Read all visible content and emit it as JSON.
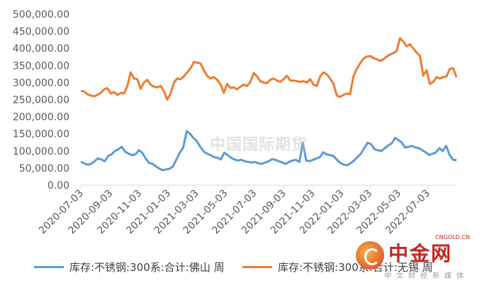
{
  "chart_data": {
    "type": "line",
    "title": "",
    "xlabel": "",
    "ylabel": "",
    "ylim": [
      0,
      500000
    ],
    "yticks": [
      "0.00",
      "50,000.00",
      "100,000.00",
      "150,000.00",
      "200,000.00",
      "250,000.00",
      "300,000.00",
      "350,000.00",
      "400,000.00",
      "450,000.00",
      "500,000.00"
    ],
    "xticks": [
      "2020-07-03",
      "2020-09-03",
      "2020-11-03",
      "2021-01-03",
      "2021-03-03",
      "2021-05-03",
      "2021-07-03",
      "2021-09-03",
      "2021-11-03",
      "2022-01-03",
      "2022-03-03",
      "2022-05-03",
      "2022-07-03"
    ],
    "x_start": "2020-07-03",
    "x_step_days": 7,
    "legend_position": "bottom",
    "grid": false,
    "series": [
      {
        "name": "库存:不锈钢:300系:合计:佛山 周",
        "color": "#5b9bd5",
        "values": [
          68000,
          64000,
          60000,
          62000,
          70000,
          78000,
          75000,
          70000,
          85000,
          90000,
          100000,
          105000,
          112000,
          98000,
          92000,
          88000,
          90000,
          102000,
          95000,
          78000,
          65000,
          62000,
          55000,
          48000,
          44000,
          46000,
          48000,
          55000,
          75000,
          95000,
          110000,
          158000,
          150000,
          138000,
          128000,
          112000,
          98000,
          92000,
          88000,
          82000,
          80000,
          75000,
          95000,
          88000,
          80000,
          75000,
          72000,
          74000,
          70000,
          68000,
          66000,
          68000,
          64000,
          62000,
          66000,
          70000,
          76000,
          74000,
          70000,
          66000,
          62000,
          68000,
          72000,
          74000,
          68000,
          124000,
          72000,
          70000,
          74000,
          78000,
          82000,
          96000,
          90000,
          88000,
          85000,
          74000,
          65000,
          60000,
          58000,
          64000,
          72000,
          82000,
          92000,
          108000,
          124000,
          120000,
          105000,
          102000,
          100000,
          108000,
          116000,
          122000,
          138000,
          132000,
          124000,
          110000,
          112000,
          115000,
          110000,
          108000,
          102000,
          96000,
          88000,
          92000,
          96000,
          108000,
          100000,
          115000,
          88000,
          74000,
          73000
        ],
        "markers": []
      },
      {
        "name": "库存:不锈钢:300系:合计:无锡 周",
        "color": "#ed7d31",
        "values": [
          276000,
          274000,
          266000,
          262000,
          260000,
          264000,
          270000,
          280000,
          284000,
          268000,
          272000,
          264000,
          270000,
          268000,
          290000,
          330000,
          312000,
          310000,
          282000,
          300000,
          308000,
          294000,
          288000,
          286000,
          290000,
          275000,
          250000,
          268000,
          300000,
          312000,
          310000,
          318000,
          330000,
          342000,
          360000,
          358000,
          356000,
          336000,
          320000,
          312000,
          316000,
          308000,
          296000,
          270000,
          296000,
          284000,
          286000,
          280000,
          288000,
          294000,
          290000,
          302000,
          328000,
          318000,
          304000,
          300000,
          298000,
          308000,
          312000,
          306000,
          302000,
          310000,
          320000,
          306000,
          306000,
          304000,
          302000,
          304000,
          300000,
          310000,
          294000,
          290000,
          318000,
          330000,
          324000,
          312000,
          296000,
          262000,
          258000,
          264000,
          268000,
          266000,
          318000,
          340000,
          356000,
          370000,
          376000,
          378000,
          372000,
          368000,
          364000,
          368000,
          376000,
          382000,
          386000,
          392000,
          430000,
          420000,
          406000,
          412000,
          400000,
          388000,
          378000,
          320000,
          336000,
          296000,
          302000,
          316000,
          312000,
          316000,
          318000,
          340000,
          342000,
          316000
        ]
      }
    ]
  },
  "legend": {
    "item1": "库存:不锈钢:300系:合计:佛山 周",
    "item2": "库存:不锈钢:300系:合计:无锡 周"
  },
  "watermark": {
    "text": "中国国际期货"
  },
  "logo": {
    "title": "中金网",
    "url": "CNGOLD.CN",
    "subtitle": "中文财经新媒体"
  }
}
